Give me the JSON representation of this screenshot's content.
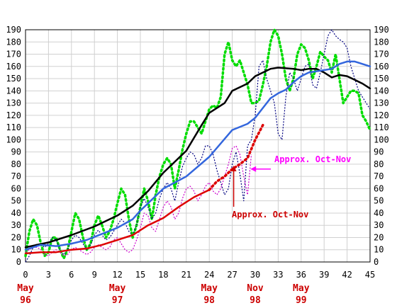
{
  "chart_data": {
    "type": "line",
    "title": "",
    "xlabel": "",
    "ylabel": "",
    "xlim": [
      0,
      45
    ],
    "ylim": [
      0,
      190
    ],
    "x_ticks": [
      0,
      3,
      6,
      9,
      12,
      15,
      18,
      21,
      24,
      27,
      30,
      33,
      36,
      39,
      42,
      45
    ],
    "y_ticks": [
      0,
      10,
      20,
      30,
      40,
      50,
      60,
      70,
      80,
      90,
      100,
      110,
      120,
      130,
      140,
      150,
      160,
      170,
      180,
      190
    ],
    "grid": true,
    "legend": "none",
    "date_labels": [
      {
        "x": 0,
        "month": "May",
        "year": "96",
        "color": "#cc0000"
      },
      {
        "x": 12,
        "month": "May",
        "year": "97",
        "color": "#cc0000"
      },
      {
        "x": 24,
        "month": "May",
        "year": "98",
        "color": "#cc0000"
      },
      {
        "x": 30,
        "month": "Nov",
        "year": "98",
        "color": "#cc0000"
      },
      {
        "x": 36,
        "month": "May",
        "year": "99",
        "color": "#cc0000"
      }
    ],
    "annotations": [
      {
        "text": "Approx. Oct-Nov",
        "color": "#ff00ff",
        "arrow_to": [
          29,
          76
        ]
      },
      {
        "text": "Approx. Oct-Nov",
        "color": "#cc0000",
        "arrow_to": [
          27,
          80
        ]
      }
    ],
    "series": [
      {
        "color": "#00dd00",
        "style": "dotted-thick",
        "x": [
          0,
          0.5,
          1,
          1.5,
          2,
          2.5,
          3,
          3.5,
          4,
          4.5,
          5,
          5.5,
          6,
          6.5,
          7,
          7.5,
          8,
          8.5,
          9,
          9.5,
          10,
          10.5,
          11,
          11.5,
          12,
          12.5,
          13,
          13.5,
          14,
          14.5,
          15,
          15.5,
          16,
          16.5,
          17,
          17.5,
          18,
          18.5,
          19,
          19.5,
          20,
          20.5,
          21,
          21.5,
          22,
          22.5,
          23,
          23.5,
          24,
          24.5,
          25,
          25.5,
          26,
          26.5,
          27,
          27.5,
          28,
          28.5,
          29,
          29.5,
          30,
          30.5,
          31,
          31.5,
          32,
          32.5,
          33,
          33.5,
          34,
          34.5,
          35,
          35.5,
          36,
          36.5,
          37,
          37.5,
          38,
          38.5,
          39,
          39.5,
          40,
          40.5,
          41,
          41.5,
          42,
          42.5,
          43,
          43.5,
          44,
          44.5,
          45
        ],
        "values": [
          5,
          25,
          35,
          30,
          15,
          5,
          8,
          20,
          20,
          10,
          3,
          10,
          25,
          40,
          35,
          20,
          10,
          15,
          30,
          38,
          30,
          20,
          25,
          35,
          48,
          60,
          55,
          35,
          20,
          30,
          45,
          60,
          50,
          35,
          55,
          70,
          80,
          85,
          80,
          60,
          75,
          92,
          105,
          115,
          115,
          110,
          105,
          115,
          125,
          128,
          126,
          135,
          170,
          180,
          165,
          160,
          165,
          155,
          145,
          130,
          130,
          132,
          145,
          160,
          180,
          190,
          185,
          170,
          150,
          140,
          150,
          170,
          178,
          175,
          165,
          150,
          160,
          172,
          168,
          165,
          155,
          170,
          150,
          130,
          135,
          140,
          140,
          138,
          120,
          115,
          108
        ]
      },
      {
        "color": "#000080",
        "style": "dotted-thin",
        "x": [
          0,
          0.5,
          1,
          1.5,
          2,
          2.5,
          3,
          3.5,
          4,
          4.5,
          5,
          5.5,
          6,
          6.5,
          7,
          7.5,
          8,
          8.5,
          9,
          9.5,
          10,
          10.5,
          11,
          11.5,
          12,
          12.5,
          13,
          13.5,
          14,
          14.5,
          15,
          15.5,
          16,
          16.5,
          17,
          17.5,
          18,
          18.5,
          19,
          19.5,
          20,
          20.5,
          21,
          21.5,
          22,
          22.5,
          23,
          23.5,
          24,
          24.5,
          25,
          25.5,
          26,
          26.5,
          27,
          27.5,
          28,
          28.5,
          29,
          29.5,
          30,
          30.5,
          31,
          31.5,
          32,
          32.5,
          33,
          33.5,
          34,
          34.5,
          35,
          35.5,
          36,
          36.5,
          37,
          37.5,
          38,
          38.5,
          39,
          39.5,
          40,
          40.5,
          41,
          41.5,
          42,
          42.5,
          43,
          43.5,
          44,
          44.5,
          45
        ],
        "values": [
          0,
          5,
          12,
          15,
          14,
          12,
          15,
          20,
          18,
          10,
          6,
          10,
          18,
          22,
          20,
          15,
          10,
          14,
          22,
          26,
          22,
          18,
          20,
          25,
          30,
          35,
          32,
          25,
          22,
          30,
          45,
          52,
          45,
          35,
          40,
          52,
          60,
          65,
          60,
          50,
          65,
          78,
          85,
          90,
          88,
          80,
          85,
          95,
          95,
          88,
          75,
          65,
          55,
          60,
          80,
          90,
          72,
          50,
          95,
          100,
          120,
          160,
          165,
          150,
          140,
          130,
          105,
          100,
          135,
          155,
          150,
          140,
          150,
          160,
          162,
          145,
          142,
          155,
          170,
          185,
          190,
          185,
          182,
          180,
          175,
          160,
          150,
          140,
          135,
          130,
          125
        ]
      },
      {
        "color": "#cc00cc",
        "style": "dotted-thin",
        "x": [
          0,
          0.5,
          1,
          1.5,
          2,
          2.5,
          3,
          3.5,
          4,
          4.5,
          5,
          5.5,
          6,
          6.5,
          7,
          7.5,
          8,
          8.5,
          9,
          9.5,
          10,
          10.5,
          11,
          11.5,
          12,
          12.5,
          13,
          13.5,
          14,
          14.5,
          15,
          15.5,
          16,
          16.5,
          17,
          17.5,
          18,
          18.5,
          19,
          19.5,
          20,
          20.5,
          21,
          21.5,
          22,
          22.5,
          23,
          23.5,
          24,
          24.5,
          25,
          25.5,
          26,
          26.5,
          27,
          27.5,
          28,
          28.5,
          29,
          29.5
        ],
        "values": [
          8,
          10,
          12,
          12,
          10,
          6,
          5,
          8,
          10,
          8,
          5,
          6,
          10,
          12,
          10,
          8,
          6,
          8,
          12,
          14,
          12,
          10,
          12,
          18,
          20,
          15,
          10,
          8,
          10,
          18,
          28,
          40,
          38,
          28,
          25,
          35,
          45,
          50,
          45,
          35,
          40,
          52,
          60,
          62,
          58,
          50,
          55,
          62,
          65,
          58,
          55,
          60,
          70,
          80,
          93,
          95,
          88,
          70,
          55,
          88
        ]
      },
      {
        "color": "#000000",
        "style": "solid",
        "x": [
          0,
          3,
          6,
          9,
          12,
          14,
          15,
          16,
          18,
          21,
          23,
          24,
          26,
          27,
          29,
          30,
          32,
          33,
          35,
          36,
          37,
          38,
          39,
          40,
          41,
          42,
          43,
          44,
          45
        ],
        "values": [
          12,
          16,
          22,
          29,
          38,
          46,
          52,
          58,
          73,
          91,
          112,
          122,
          130,
          140,
          146,
          152,
          158,
          159,
          158,
          157,
          158,
          158,
          155,
          151,
          153,
          152,
          149,
          146,
          142
        ]
      },
      {
        "color": "#3366dd",
        "style": "solid",
        "x": [
          0,
          2,
          4,
          6,
          8,
          10,
          12,
          14,
          15,
          16,
          18,
          21,
          24,
          27,
          29,
          30,
          31,
          32,
          33,
          34,
          35,
          36,
          37,
          38,
          39,
          40,
          41,
          42,
          43,
          44,
          45
        ],
        "values": [
          10,
          14,
          13,
          15,
          18,
          23,
          28,
          35,
          42,
          48,
          60,
          70,
          86,
          108,
          113,
          118,
          126,
          134,
          138,
          141,
          147,
          152,
          155,
          156,
          157,
          158,
          162,
          164,
          164,
          162,
          160
        ]
      },
      {
        "color": "#dd0000",
        "style": "solid",
        "x": [
          0,
          2,
          4,
          6,
          8,
          10,
          12,
          14,
          16,
          18,
          20,
          22,
          24
        ],
        "values": [
          7,
          8,
          8,
          10,
          11,
          14,
          18,
          22,
          30,
          36,
          45,
          53,
          59
        ]
      },
      {
        "color": "#dd0000",
        "style": "dotted-thick",
        "x": [
          24,
          25,
          26,
          27,
          28,
          29,
          30,
          31
        ],
        "values": [
          59,
          66,
          70,
          76,
          80,
          85,
          100,
          112
        ]
      }
    ]
  }
}
